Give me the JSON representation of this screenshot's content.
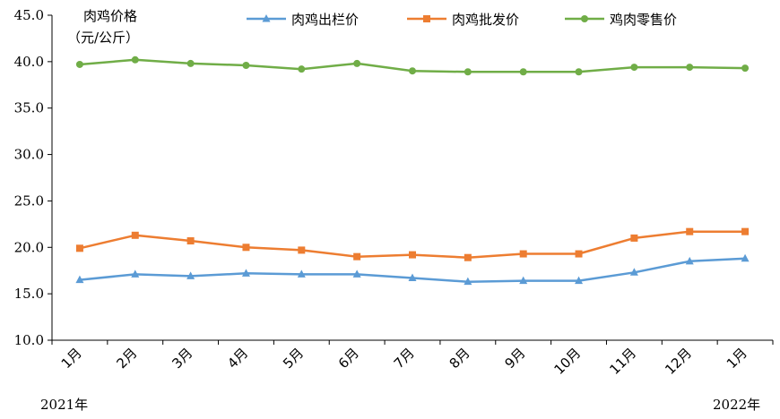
{
  "chart_data": {
    "type": "line",
    "ylabel_line1": "肉鸡价格",
    "ylabel_line2": "（元/公斤）",
    "ylim": [
      10.0,
      45.0
    ],
    "ytick_step": 5.0,
    "ytick_labels": [
      "10.0",
      "15.0",
      "20.0",
      "25.0",
      "30.0",
      "35.0",
      "40.0",
      "45.0"
    ],
    "categories": [
      "1月",
      "2月",
      "3月",
      "4月",
      "5月",
      "6月",
      "7月",
      "8月",
      "9月",
      "10月",
      "11月",
      "12月",
      "1月"
    ],
    "year_start_label": "2021年",
    "year_end_label": "2022年",
    "legend_position": "top",
    "grid": false,
    "series": [
      {
        "name": "肉鸡出栏价",
        "color": "#5B9BD5",
        "marker": "triangle",
        "values": [
          16.5,
          17.1,
          16.9,
          17.2,
          17.1,
          17.1,
          16.7,
          16.3,
          16.4,
          16.4,
          17.3,
          18.5,
          18.8
        ]
      },
      {
        "name": "肉鸡批发价",
        "color": "#ED7D31",
        "marker": "square",
        "values": [
          19.9,
          21.3,
          20.7,
          20.0,
          19.7,
          19.0,
          19.2,
          18.9,
          19.3,
          19.3,
          21.0,
          21.7,
          21.7
        ]
      },
      {
        "name": "鸡肉零售价",
        "color": "#70AD47",
        "marker": "circle",
        "values": [
          39.7,
          40.2,
          39.8,
          39.6,
          39.2,
          39.8,
          39.0,
          38.9,
          38.9,
          38.9,
          39.4,
          39.4,
          39.3
        ]
      }
    ]
  }
}
